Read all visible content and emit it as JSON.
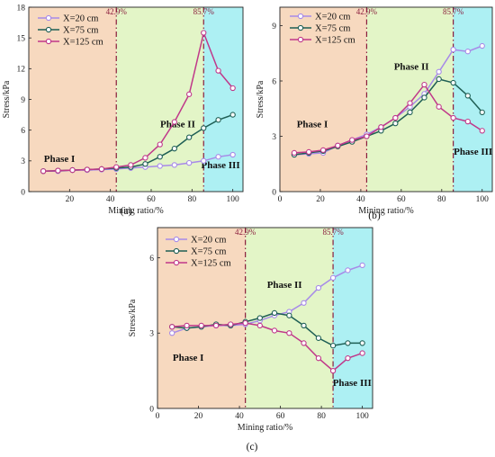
{
  "chart_data": [
    {
      "type": "line",
      "label": "(a)",
      "xlabel": "Mining ratio/%",
      "ylabel": "Stress/kPa",
      "xlim": [
        0,
        105
      ],
      "ylim": [
        0,
        18
      ],
      "xticks": [
        20,
        40,
        60,
        80,
        100
      ],
      "yticks": [
        0,
        3,
        6,
        9,
        12,
        15,
        18
      ],
      "boundaries": [
        42.9,
        85.7
      ],
      "boundary_labels": [
        "42.9%",
        "85.7%"
      ],
      "phases": [
        {
          "label": "Phase I",
          "x": 15,
          "y": 2.9
        },
        {
          "label": "Phase II",
          "x": 73,
          "y": 6.3
        },
        {
          "label": "Phase III",
          "x": 94,
          "y": 2.3
        }
      ],
      "legend_position": "top-left",
      "series": [
        {
          "name": "X=20 cm",
          "color": "#a78ae8",
          "x": [
            7.1,
            14.3,
            21.4,
            28.6,
            35.7,
            42.9,
            50,
            57.1,
            64.3,
            71.4,
            78.6,
            85.7,
            92.9,
            100
          ],
          "y": [
            2.0,
            2.0,
            2.1,
            2.1,
            2.15,
            2.2,
            2.3,
            2.4,
            2.5,
            2.6,
            2.8,
            3.0,
            3.4,
            3.6
          ]
        },
        {
          "name": "X=75 cm",
          "color": "#1f5f55",
          "x": [
            7.1,
            14.3,
            21.4,
            28.6,
            35.7,
            42.9,
            50,
            57.1,
            64.3,
            71.4,
            78.6,
            85.7,
            92.9,
            100
          ],
          "y": [
            2.0,
            2.05,
            2.1,
            2.15,
            2.2,
            2.3,
            2.4,
            2.7,
            3.4,
            4.2,
            5.3,
            6.2,
            7.0,
            7.5
          ]
        },
        {
          "name": "X=125 cm",
          "color": "#c0388a",
          "x": [
            7.1,
            14.3,
            21.4,
            28.6,
            35.7,
            42.9,
            50,
            57.1,
            64.3,
            71.4,
            78.6,
            85.7,
            92.9,
            100
          ],
          "y": [
            2.0,
            2.05,
            2.1,
            2.15,
            2.2,
            2.4,
            2.6,
            3.3,
            4.6,
            6.8,
            9.5,
            15.5,
            11.8,
            10.1
          ]
        }
      ]
    },
    {
      "type": "line",
      "label": "(b)",
      "xlabel": "Mining ratio/%",
      "ylabel": "Stress/kPa",
      "xlim": [
        0,
        105
      ],
      "ylim": [
        0,
        10
      ],
      "xticks": [
        0,
        20,
        40,
        60,
        80,
        100
      ],
      "yticks": [
        0,
        3,
        6,
        9
      ],
      "boundaries": [
        42.9,
        85.7
      ],
      "boundary_labels": [
        "42.9%",
        "85.7%"
      ],
      "phases": [
        {
          "label": "Phase I",
          "x": 16,
          "y": 3.5
        },
        {
          "label": "Phase II",
          "x": 65,
          "y": 6.6
        },
        {
          "label": "Phase III",
          "x": 95.5,
          "y": 2.0
        }
      ],
      "legend_position": "top-left",
      "series": [
        {
          "name": "X=20 cm",
          "color": "#a78ae8",
          "x": [
            7.1,
            14.3,
            21.4,
            28.6,
            35.7,
            42.9,
            50,
            57.1,
            64.3,
            71.4,
            78.6,
            85.7,
            92.9,
            100
          ],
          "y": [
            2.0,
            2.05,
            2.1,
            2.5,
            2.8,
            3.1,
            3.5,
            4.0,
            4.6,
            5.3,
            6.5,
            7.7,
            7.6,
            7.9
          ]
        },
        {
          "name": "X=75 cm",
          "color": "#1f5f55",
          "x": [
            7.1,
            14.3,
            21.4,
            28.6,
            35.7,
            42.9,
            50,
            57.1,
            64.3,
            71.4,
            78.6,
            85.7,
            92.9,
            100
          ],
          "y": [
            2.0,
            2.1,
            2.2,
            2.45,
            2.7,
            3.0,
            3.3,
            3.7,
            4.3,
            5.1,
            6.1,
            5.9,
            5.2,
            4.3
          ]
        },
        {
          "name": "X=125 cm",
          "color": "#c0388a",
          "x": [
            7.1,
            14.3,
            21.4,
            28.6,
            35.7,
            42.9,
            50,
            57.1,
            64.3,
            71.4,
            78.6,
            85.7,
            92.9,
            100
          ],
          "y": [
            2.1,
            2.15,
            2.25,
            2.5,
            2.8,
            3.0,
            3.5,
            4.0,
            4.8,
            5.8,
            4.6,
            4.0,
            3.8,
            3.3
          ]
        }
      ]
    },
    {
      "type": "line",
      "label": "(c)",
      "xlabel": "Mining ratio/%",
      "ylabel": "Stress/kPa",
      "xlim": [
        0,
        105
      ],
      "ylim": [
        0,
        7.2
      ],
      "xticks": [
        0,
        20,
        40,
        60,
        80,
        100
      ],
      "yticks": [
        0,
        3,
        6
      ],
      "boundaries": [
        42.9,
        85.7
      ],
      "boundary_labels": [
        "42.9%",
        "85.7%"
      ],
      "phases": [
        {
          "label": "Phase I",
          "x": 15,
          "y": 1.9
        },
        {
          "label": "Phase II",
          "x": 62,
          "y": 4.8
        },
        {
          "label": "Phase III",
          "x": 95,
          "y": 0.9
        }
      ],
      "legend_position": "top-left",
      "series": [
        {
          "name": "X=20 cm",
          "color": "#a78ae8",
          "x": [
            7.1,
            14.3,
            21.4,
            28.6,
            35.7,
            42.9,
            50,
            57.1,
            64.3,
            71.4,
            78.6,
            85.7,
            92.9,
            100
          ],
          "y": [
            3.0,
            3.2,
            3.25,
            3.3,
            3.3,
            3.35,
            3.5,
            3.7,
            3.85,
            4.2,
            4.8,
            5.2,
            5.5,
            5.7
          ]
        },
        {
          "name": "X=75 cm",
          "color": "#1f5f55",
          "x": [
            7.1,
            14.3,
            21.4,
            28.6,
            35.7,
            42.9,
            50,
            57.1,
            64.3,
            71.4,
            78.6,
            85.7,
            92.9,
            100
          ],
          "y": [
            3.25,
            3.2,
            3.25,
            3.35,
            3.3,
            3.45,
            3.6,
            3.8,
            3.7,
            3.3,
            2.8,
            2.5,
            2.6,
            2.6
          ]
        },
        {
          "name": "X=125 cm",
          "color": "#c0388a",
          "x": [
            7.1,
            14.3,
            21.4,
            28.6,
            35.7,
            42.9,
            50,
            57.1,
            64.3,
            71.4,
            78.6,
            85.7,
            92.9,
            100
          ],
          "y": [
            3.25,
            3.3,
            3.3,
            3.3,
            3.35,
            3.4,
            3.3,
            3.1,
            3.0,
            2.6,
            2.0,
            1.5,
            2.0,
            2.2
          ]
        }
      ]
    }
  ],
  "colors": {
    "phase1_bg": "#f7d9bf",
    "phase2_bg": "#e3f5c7",
    "phase3_bg": "#adf0f3",
    "boundary_line": "#8a1d3d"
  }
}
